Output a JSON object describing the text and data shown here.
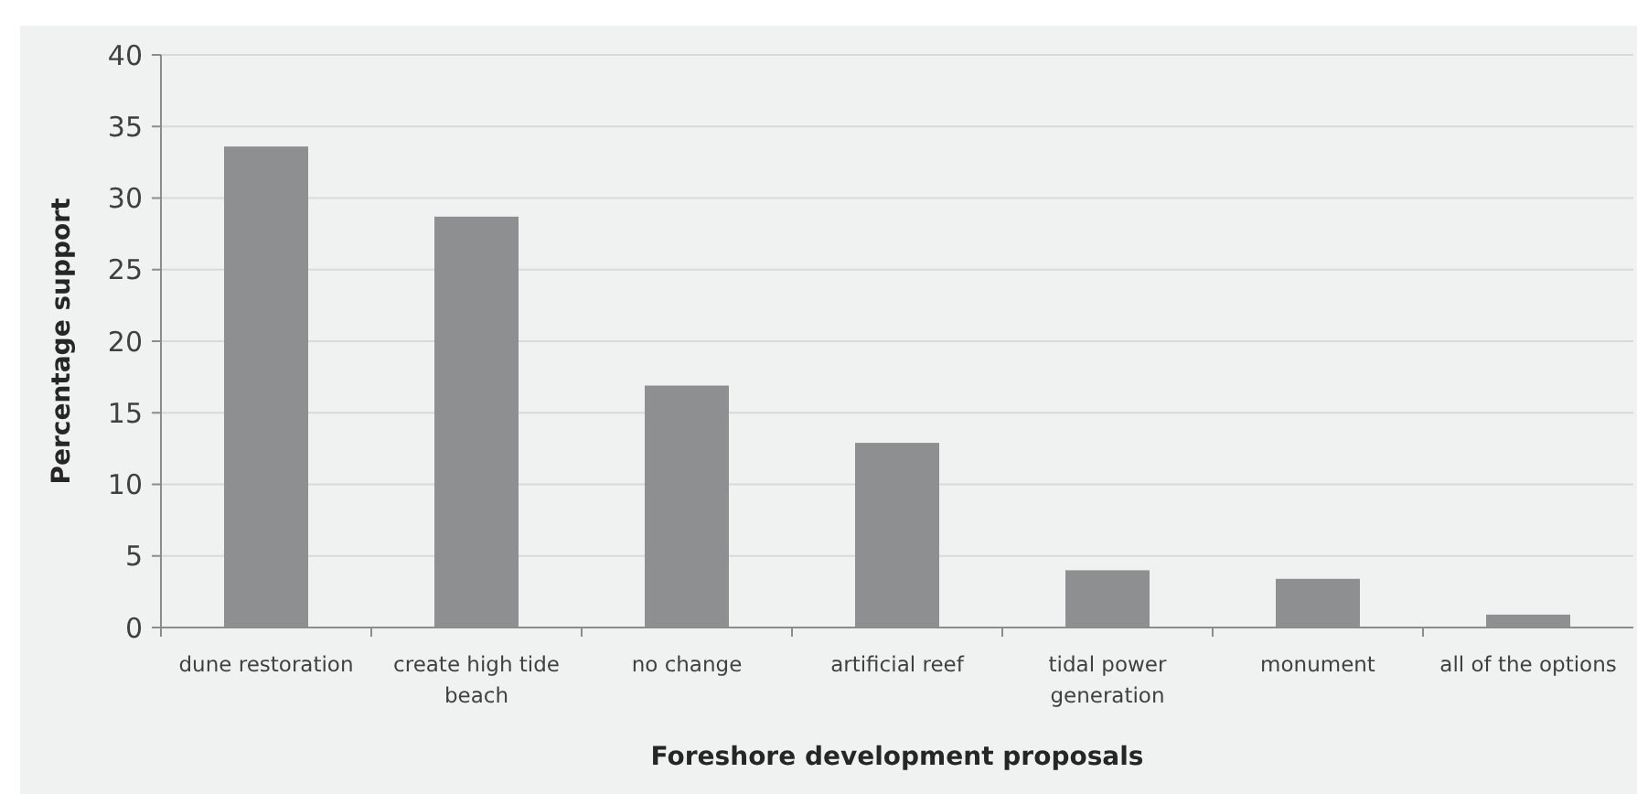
{
  "chart_data": {
    "type": "bar",
    "xlabel": "Foreshore development proposals",
    "ylabel": "Percentage support",
    "categories": [
      "dune restoration",
      "create high tide beach",
      "no change",
      "artificial reef",
      "tidal power generation",
      "monument",
      "all of the options"
    ],
    "values": [
      33.6,
      28.7,
      16.9,
      12.9,
      4.0,
      3.4,
      0.9
    ],
    "color": "#8e8f91",
    "ylim": [
      0,
      40
    ],
    "yticks": [
      0,
      5,
      10,
      15,
      20,
      25,
      30,
      35,
      40
    ],
    "grid": "y"
  }
}
